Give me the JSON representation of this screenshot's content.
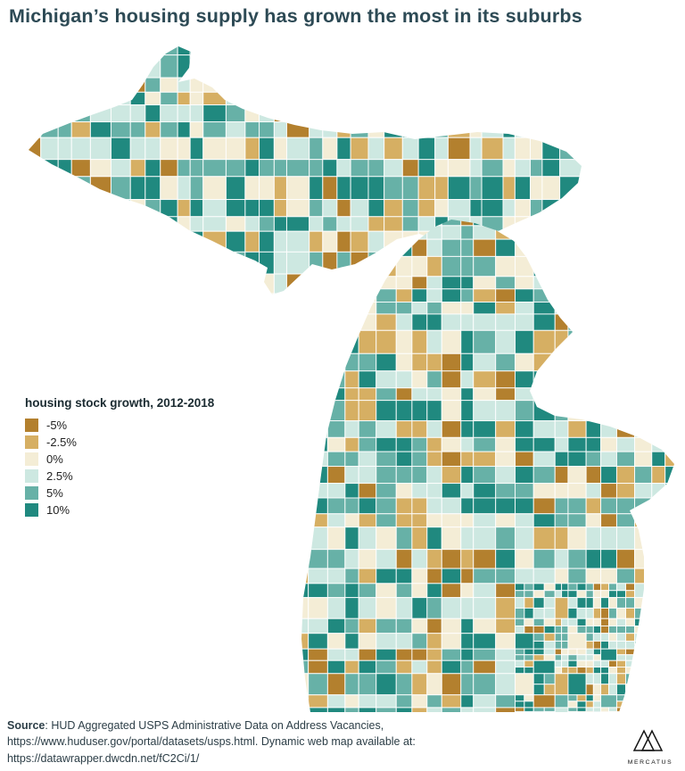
{
  "title": "Michigan’s housing supply has grown the most in its suburbs",
  "legend": {
    "title": "housing stock growth, 2012-2018",
    "items": [
      {
        "label": "-5%",
        "color": "#b3802e"
      },
      {
        "label": "-2.5%",
        "color": "#d6af63"
      },
      {
        "label": "0%",
        "color": "#f4edd6"
      },
      {
        "label": "2.5%",
        "color": "#cde8e1"
      },
      {
        "label": "5%",
        "color": "#67b1a7"
      },
      {
        "label": "10%",
        "color": "#20897f"
      }
    ]
  },
  "footer": {
    "source_bold": "Source",
    "source_rest": ": HUD Aggregated USPS Administrative Data on Address Vacancies,",
    "line2": "https://www.huduser.gov/portal/datasets/usps.html. Dynamic web map available at:",
    "line3": "https://datawrapper.dwcdn.net/fC2Ci/1/"
  },
  "logo": {
    "text": "MERCATUS"
  },
  "chart_data": {
    "type": "choropleth",
    "region": "Michigan",
    "title": "housing stock growth, 2012-2018",
    "classes": [
      {
        "label": "-5%",
        "color": "#b3802e"
      },
      {
        "label": "-2.5%",
        "color": "#d6af63"
      },
      {
        "label": "0%",
        "color": "#f4edd6"
      },
      {
        "label": "2.5%",
        "color": "#cde8e1"
      },
      {
        "label": "5%",
        "color": "#67b1a7"
      },
      {
        "label": "10%",
        "color": "#20897f"
      }
    ],
    "legend_position": "middle-left"
  }
}
